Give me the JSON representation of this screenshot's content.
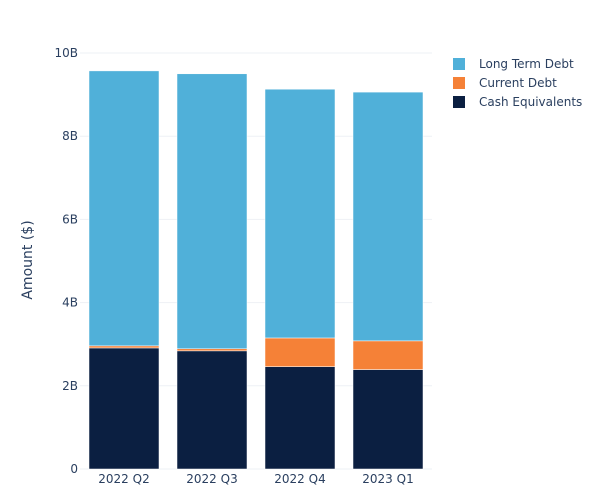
{
  "chart_data": {
    "type": "bar",
    "stacked": true,
    "title": "",
    "xlabel": "",
    "ylabel": "Amount ($)",
    "ylim": [
      0,
      10000000000
    ],
    "yticks": [
      0,
      2000000000,
      4000000000,
      6000000000,
      8000000000,
      10000000000
    ],
    "ytick_labels": [
      "0",
      "2B",
      "4B",
      "6B",
      "8B",
      "10B"
    ],
    "grid": true,
    "legend_placement": "top-right",
    "categories": [
      "2022 Q2",
      "2022 Q3",
      "2022 Q4",
      "2023 Q1"
    ],
    "series": [
      {
        "name": "Cash Equivalents",
        "color": "#0b1f41",
        "values": [
          2910000000,
          2840000000,
          2460000000,
          2390000000
        ]
      },
      {
        "name": "Current Debt",
        "color": "#f58137",
        "values": [
          50000000,
          50000000,
          690000000,
          690000000
        ]
      },
      {
        "name": "Long Term Debt",
        "color": "#50b0d9",
        "values": [
          6610000000,
          6610000000,
          5980000000,
          5980000000
        ]
      }
    ]
  }
}
